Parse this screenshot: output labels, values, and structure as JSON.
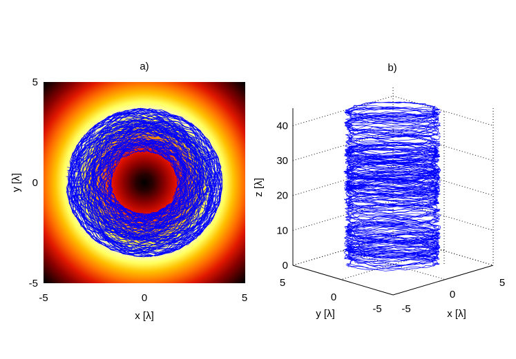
{
  "chart_data": [
    {
      "panel": "a)",
      "type": "heatmap",
      "title": "a)",
      "xlabel": "x [λ]",
      "ylabel": "y [λ]",
      "xlim": [
        -5,
        5
      ],
      "ylim": [
        -5,
        5
      ],
      "xticks": [
        "-5",
        "0",
        "5"
      ],
      "yticks": [
        "5",
        "0",
        "-5"
      ],
      "colormap": "hot",
      "intensity_profile": "doughnut (dark center, bright ring, dark edges)",
      "ring_peak_radius": 2.8,
      "trajectory_color": "#0000ff",
      "trajectory_band": {
        "r_min": 1.6,
        "r_max": 3.9
      },
      "trajectory_count": 80
    },
    {
      "panel": "b)",
      "type": "line",
      "title": "b)",
      "xlabel": "x [λ]",
      "ylabel": "y [λ]",
      "zlabel": "z [λ]",
      "xticks": [
        "-5",
        "0",
        "5"
      ],
      "yticks": [
        "5",
        "0",
        "-5"
      ],
      "zticks": [
        "0",
        "10",
        "20",
        "30",
        "40"
      ],
      "zlim": [
        0,
        45
      ],
      "grid": true,
      "trajectory_color": "#0000ff",
      "trajectory_count": 70
    }
  ]
}
